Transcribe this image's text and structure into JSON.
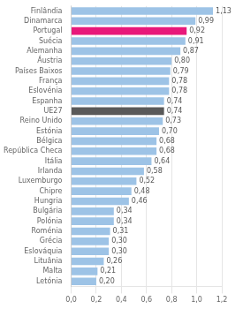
{
  "chart_data": {
    "type": "bar",
    "orientation": "horizontal",
    "categories": [
      "Letónia",
      "Malta",
      "Lituânia",
      "Eslováquia",
      "Grécia",
      "Roménia",
      "Polónia",
      "Bulgária",
      "Hungria",
      "Chipre",
      "Luxemburgo",
      "Irlanda",
      "Itália",
      "República Checa",
      "Bélgica",
      "Estónia",
      "Reino Unido",
      "UE27",
      "Espanha",
      "Eslovénia",
      "França",
      "Países Baixos",
      "Áustria",
      "Alemanha",
      "Suécia",
      "Portugal",
      "Dinamarca",
      "Finlândia"
    ],
    "values": [
      0.2,
      0.21,
      0.26,
      0.3,
      0.3,
      0.31,
      0.34,
      0.34,
      0.46,
      0.48,
      0.52,
      0.58,
      0.64,
      0.68,
      0.68,
      0.7,
      0.73,
      0.74,
      0.74,
      0.78,
      0.78,
      0.79,
      0.8,
      0.87,
      0.91,
      0.92,
      0.99,
      1.13
    ],
    "value_labels": [
      "0,20",
      "0,21",
      "0,26",
      "0,30",
      "0,30",
      "0,31",
      "0,34",
      "0,34",
      "0,46",
      "0,48",
      "0,52",
      "0,58",
      "0,64",
      "0,68",
      "0,68",
      "0,70",
      "0,73",
      "0,74",
      "0,74",
      "0,78",
      "0,78",
      "0,79",
      "0,80",
      "0,87",
      "0,91",
      "0,92",
      "0,99",
      "1,13"
    ],
    "data_labels": true,
    "colors": [
      "#9dc3e6",
      "#9dc3e6",
      "#9dc3e6",
      "#9dc3e6",
      "#9dc3e6",
      "#9dc3e6",
      "#9dc3e6",
      "#9dc3e6",
      "#9dc3e6",
      "#9dc3e6",
      "#9dc3e6",
      "#9dc3e6",
      "#9dc3e6",
      "#9dc3e6",
      "#9dc3e6",
      "#9dc3e6",
      "#9dc3e6",
      "#595959",
      "#9dc3e6",
      "#9dc3e6",
      "#9dc3e6",
      "#9dc3e6",
      "#9dc3e6",
      "#9dc3e6",
      "#9dc3e6",
      "#e8187a",
      "#9dc3e6",
      "#9dc3e6"
    ],
    "xlim": [
      0,
      1.2
    ],
    "xticks": [
      {
        "value": 0.0,
        "label": "0,0"
      },
      {
        "value": 0.2,
        "label": "0,2"
      },
      {
        "value": 0.4,
        "label": "0,4"
      },
      {
        "value": 0.6,
        "label": "0,6"
      },
      {
        "value": 0.8,
        "label": "0,8"
      },
      {
        "value": 1.0,
        "label": "1,0"
      },
      {
        "value": 1.2,
        "label": "1,2"
      }
    ],
    "grid": true
  }
}
